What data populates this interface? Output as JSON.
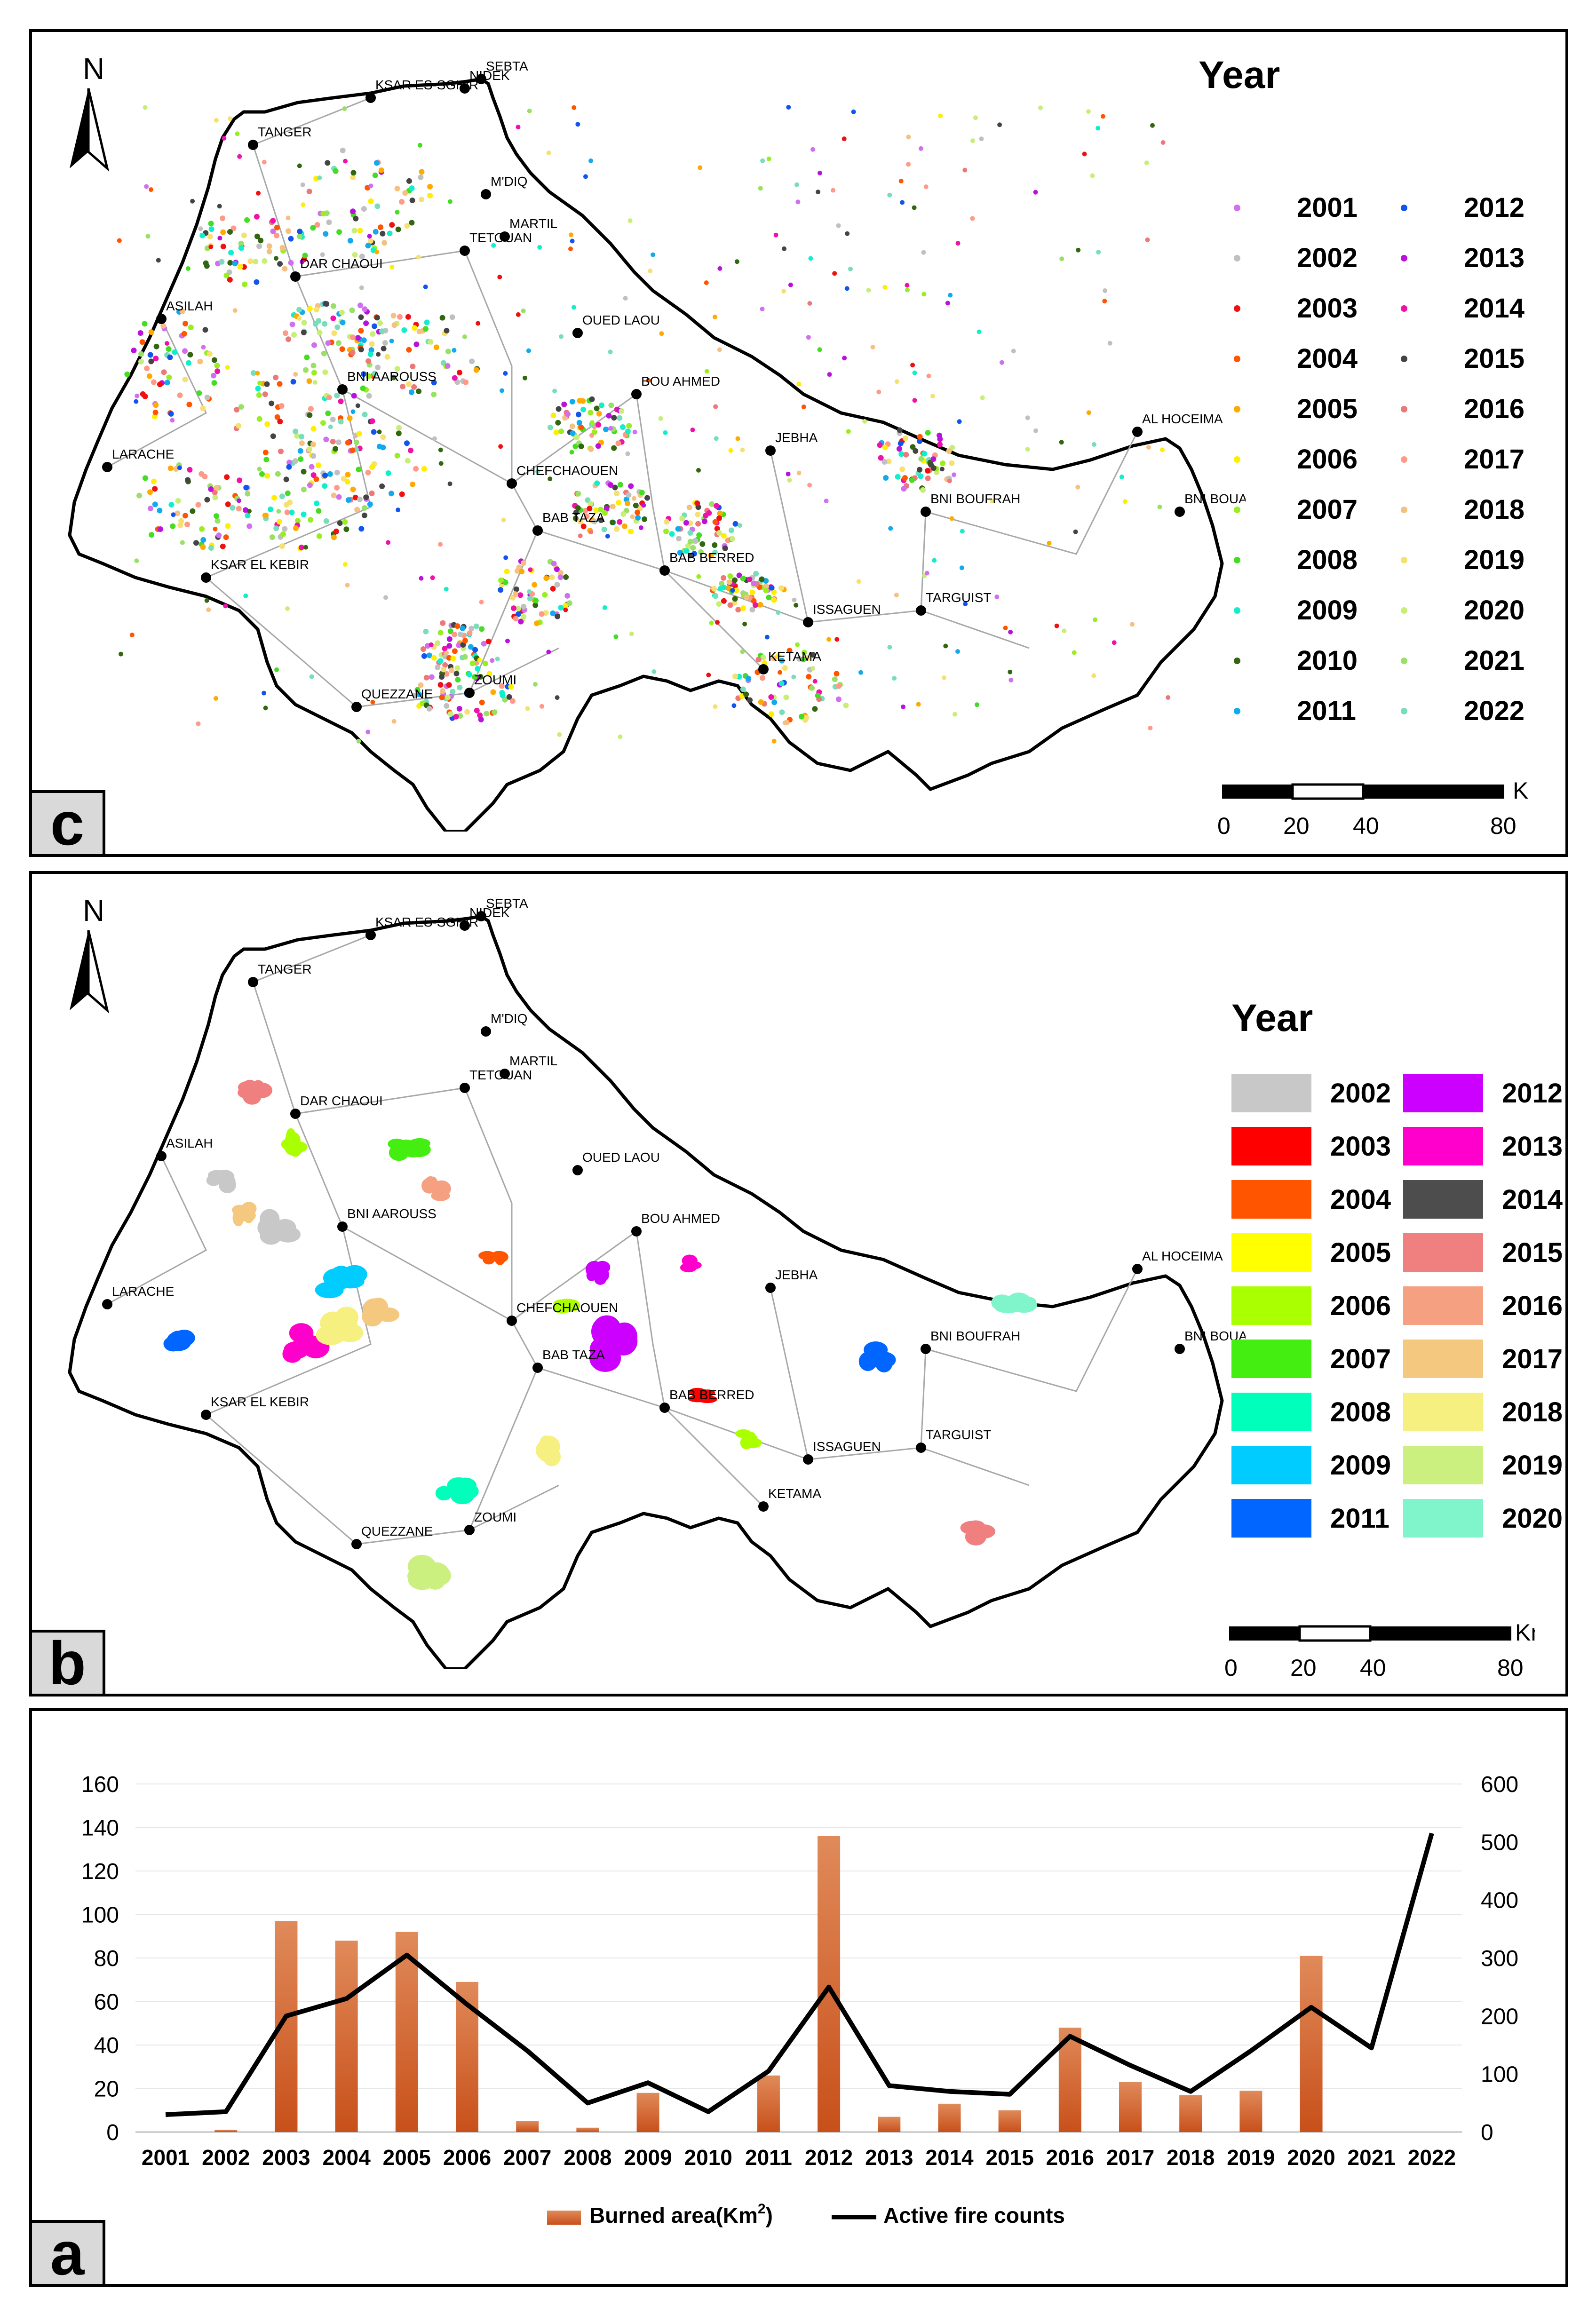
{
  "panels": {
    "c": {
      "letter": "c",
      "north": "N",
      "legend_title": "Year",
      "legend": [
        {
          "year": "2001",
          "color": "#d070f0"
        },
        {
          "year": "2002",
          "color": "#c0c0c0"
        },
        {
          "year": "2003",
          "color": "#ee1111"
        },
        {
          "year": "2004",
          "color": "#ff5500"
        },
        {
          "year": "2005",
          "color": "#ffaa00"
        },
        {
          "year": "2006",
          "color": "#ffee00"
        },
        {
          "year": "2007",
          "color": "#99ee22"
        },
        {
          "year": "2008",
          "color": "#44dd22"
        },
        {
          "year": "2009",
          "color": "#11eecc"
        },
        {
          "year": "2010",
          "color": "#336611"
        },
        {
          "year": "2011",
          "color": "#11aaee"
        },
        {
          "year": "2012",
          "color": "#1155ee"
        },
        {
          "year": "2013",
          "color": "#bb11dd"
        },
        {
          "year": "2014",
          "color": "#ee11aa"
        },
        {
          "year": "2015",
          "color": "#444444"
        },
        {
          "year": "2016",
          "color": "#ee7777"
        },
        {
          "year": "2017",
          "color": "#ff9988"
        },
        {
          "year": "2018",
          "color": "#f5c080"
        },
        {
          "year": "2019",
          "color": "#f5e070"
        },
        {
          "year": "2020",
          "color": "#c8ee77"
        },
        {
          "year": "2021",
          "color": "#99e066"
        },
        {
          "year": "2022",
          "color": "#77ddbb"
        }
      ],
      "scale": {
        "unit": "Km",
        "ticks": [
          "0",
          "20",
          "40",
          "80"
        ]
      }
    },
    "b": {
      "letter": "b",
      "north": "N",
      "legend_title": "Year",
      "legend": [
        {
          "year": "2002",
          "color": "#c8c8c8"
        },
        {
          "year": "2003",
          "color": "#ff0000"
        },
        {
          "year": "2004",
          "color": "#ff5500"
        },
        {
          "year": "2005",
          "color": "#ffff00"
        },
        {
          "year": "2006",
          "color": "#aaff00"
        },
        {
          "year": "2007",
          "color": "#44ee11"
        },
        {
          "year": "2008",
          "color": "#00ffbb"
        },
        {
          "year": "2009",
          "color": "#00ccff"
        },
        {
          "year": "2011",
          "color": "#0066ff"
        },
        {
          "year": "2012",
          "color": "#cc00ff"
        },
        {
          "year": "2013",
          "color": "#ff00cc"
        },
        {
          "year": "2014",
          "color": "#4d4d4d"
        },
        {
          "year": "2015",
          "color": "#f08080"
        },
        {
          "year": "2016",
          "color": "#f5a080"
        },
        {
          "year": "2017",
          "color": "#f5c880"
        },
        {
          "year": "2018",
          "color": "#f5f080"
        },
        {
          "year": "2019",
          "color": "#ccf080"
        },
        {
          "year": "2020",
          "color": "#80f5cc"
        }
      ],
      "scale": {
        "unit": "Km",
        "ticks": [
          "0",
          "20",
          "40",
          "80"
        ]
      }
    },
    "a": {
      "letter": "a"
    }
  },
  "cities": [
    {
      "name": "SEBTA"
    },
    {
      "name": "KSAR ES-SGHIR"
    },
    {
      "name": "NIDEK"
    },
    {
      "name": "TANGER"
    },
    {
      "name": "M'DIQ"
    },
    {
      "name": "MARTIL"
    },
    {
      "name": "TETOUAN"
    },
    {
      "name": "DAR CHAOUI"
    },
    {
      "name": "ASILAH"
    },
    {
      "name": "OUED LAOU"
    },
    {
      "name": "BNI AAROUSS"
    },
    {
      "name": "BOU AHMED"
    },
    {
      "name": "AL HOCEIMA"
    },
    {
      "name": "LARACHE"
    },
    {
      "name": "CHEFCHAOUEN"
    },
    {
      "name": "JEBHA"
    },
    {
      "name": "BNI BOUAYACH"
    },
    {
      "name": "BNI BOUFRAH"
    },
    {
      "name": "BAB TAZA"
    },
    {
      "name": "KSAR EL KEBIR"
    },
    {
      "name": "BAB BERRED"
    },
    {
      "name": "ISSAGUEN"
    },
    {
      "name": "TARGUIST"
    },
    {
      "name": "KETAMA"
    },
    {
      "name": "QUEZZANE"
    },
    {
      "name": "ZOUMI"
    }
  ],
  "chart_data": {
    "type": "bar",
    "categories": [
      "2001",
      "2002",
      "2003",
      "2004",
      "2005",
      "2006",
      "2007",
      "2008",
      "2009",
      "2010",
      "2011",
      "2012",
      "2013",
      "2014",
      "2015",
      "2016",
      "2017",
      "2018",
      "2019",
      "2020",
      "2021",
      "2022"
    ],
    "series": [
      {
        "name": "Burned area(Km²)",
        "type": "bar",
        "axis": "left",
        "color": "#d9662a",
        "values": [
          0,
          1,
          97,
          88,
          92,
          69,
          5,
          2,
          18,
          0,
          26,
          136,
          7,
          13,
          10,
          48,
          23,
          17,
          19,
          81,
          0,
          0
        ]
      },
      {
        "name": "Active fire counts",
        "type": "line",
        "axis": "right",
        "color": "#000000",
        "values": [
          30,
          35,
          200,
          230,
          305,
          220,
          140,
          50,
          85,
          35,
          105,
          250,
          80,
          70,
          65,
          165,
          115,
          70,
          140,
          215,
          145,
          515
        ]
      }
    ],
    "left_axis": {
      "ticks": [
        "0",
        "20",
        "40",
        "60",
        "80",
        "100",
        "120",
        "140",
        "160"
      ],
      "ylim": [
        0,
        160
      ]
    },
    "right_axis": {
      "ticks": [
        "0",
        "100",
        "200",
        "300",
        "400",
        "500",
        "600"
      ],
      "ylim": [
        0,
        600
      ]
    },
    "legend_bar_label": "Burned area(Km",
    "legend_bar_sup": "2",
    "legend_bar_close": ")",
    "legend_line_label": "Active fire counts"
  }
}
